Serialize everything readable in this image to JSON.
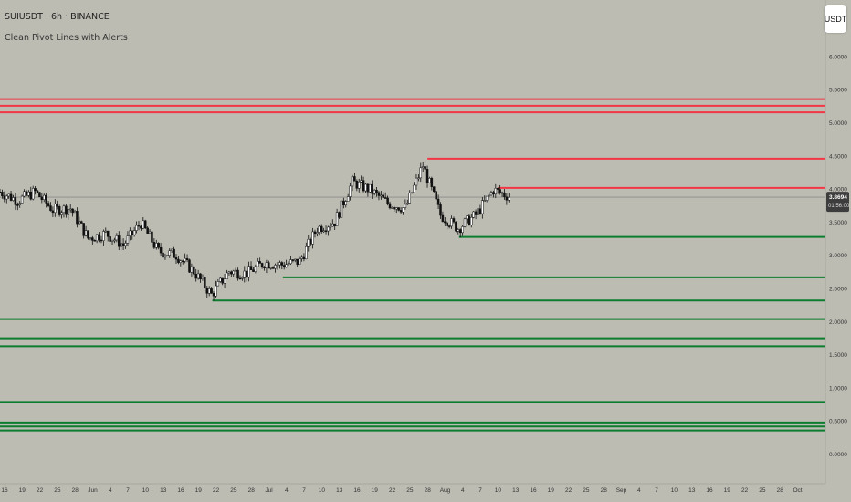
{
  "header": {
    "title": "SUIUSDT · 6h · BINANCE",
    "indicator": "Clean Pivot Lines with Alerts",
    "currency_button": "USDT"
  },
  "colors": {
    "background": "#bdbcb3",
    "resistance": "#f23645",
    "support": "#0c7d2e",
    "candle": "#111111",
    "price_line": "#8a8a88",
    "price_label_bg": "#3d3d3d"
  },
  "chart_data": {
    "type": "candlestick",
    "y_axis_ticks": [
      "6.0000",
      "5.5000",
      "5.0000",
      "4.5000",
      "4.0000",
      "3.5000",
      "3.0000",
      "2.5000",
      "2.0000",
      "1.5000",
      "1.0000",
      "0.5000",
      "0.0000"
    ],
    "x_axis_ticks": [
      "16",
      "19",
      "22",
      "25",
      "28",
      "Jun",
      "4",
      "7",
      "10",
      "13",
      "16",
      "19",
      "22",
      "25",
      "28",
      "Jul",
      "4",
      "7",
      "10",
      "13",
      "16",
      "19",
      "22",
      "25",
      "28",
      "Aug",
      "4",
      "7",
      "10",
      "13",
      "16",
      "19",
      "22",
      "25",
      "28",
      "Sep",
      "4",
      "7",
      "10",
      "13",
      "16",
      "19",
      "22",
      "25",
      "28",
      "Oct"
    ],
    "last_price_label": "3.8694",
    "countdown_label": "01:56:00",
    "last_price": 3.8694,
    "resistance_levels": [
      {
        "price": 5.35,
        "start": "16"
      },
      {
        "price": 5.25,
        "start": "16"
      },
      {
        "price": 5.15,
        "start": "16"
      },
      {
        "price": 4.45,
        "start": "28"
      },
      {
        "price": 4.01,
        "start": "10"
      }
    ],
    "support_levels": [
      {
        "price": 3.27,
        "start": "4"
      },
      {
        "price": 2.66,
        "start": "4"
      },
      {
        "price": 2.31,
        "start": "22"
      },
      {
        "price": 2.03,
        "start": "16"
      },
      {
        "price": 1.74,
        "start": "16"
      },
      {
        "price": 1.62,
        "start": "16"
      },
      {
        "price": 0.78,
        "start": "16"
      },
      {
        "price": 0.47,
        "start": "16"
      },
      {
        "price": 0.41,
        "start": "16"
      },
      {
        "price": 0.35,
        "start": "16"
      }
    ],
    "close_path": [
      {
        "x": "16",
        "y": 3.95
      },
      {
        "x": "19",
        "y": 3.82
      },
      {
        "x": "22",
        "y": 3.95
      },
      {
        "x": "25",
        "y": 3.68
      },
      {
        "x": "28",
        "y": 3.7
      },
      {
        "x": "Jun",
        "y": 3.25
      },
      {
        "x": "4",
        "y": 3.32
      },
      {
        "x": "7",
        "y": 3.15
      },
      {
        "x": "10",
        "y": 3.48
      },
      {
        "x": "13",
        "y": 3.05
      },
      {
        "x": "16",
        "y": 3.0
      },
      {
        "x": "19",
        "y": 2.75
      },
      {
        "x": "22",
        "y": 2.4
      },
      {
        "x": "25",
        "y": 2.75
      },
      {
        "x": "28",
        "y": 2.72
      },
      {
        "x": "Jul",
        "y": 2.88
      },
      {
        "x": "4",
        "y": 2.85
      },
      {
        "x": "7",
        "y": 2.9
      },
      {
        "x": "10",
        "y": 3.4
      },
      {
        "x": "13",
        "y": 3.5
      },
      {
        "x": "16",
        "y": 4.1
      },
      {
        "x": "19",
        "y": 3.98
      },
      {
        "x": "22",
        "y": 3.78
      },
      {
        "x": "25",
        "y": 3.7
      },
      {
        "x": "28",
        "y": 4.35
      },
      {
        "x": "Aug",
        "y": 3.6
      },
      {
        "x": "4",
        "y": 3.4
      },
      {
        "x": "7",
        "y": 3.6
      },
      {
        "x": "10",
        "y": 3.98
      },
      {
        "x": "13",
        "y": 3.87
      }
    ]
  }
}
